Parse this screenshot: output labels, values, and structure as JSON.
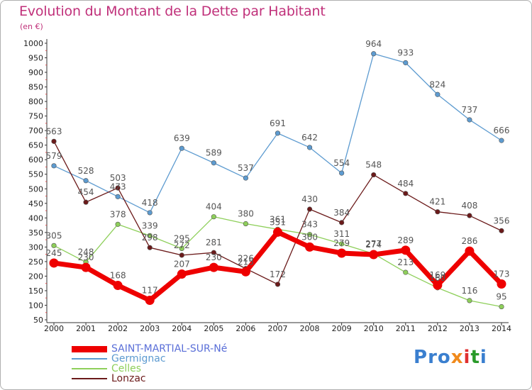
{
  "header": {
    "title": "Evolution du Montant de la Dette par Habitant",
    "subtitle": "(en €)"
  },
  "logo": {
    "text": "Proxiti",
    "colors": [
      "#3a7fcf",
      "#3a7fcf",
      "#3a7fcf",
      "#f08a1c",
      "#e03030",
      "#2a9a2a",
      "#3a7fcf"
    ]
  },
  "chart_data": {
    "type": "line",
    "title": "Evolution du Montant de la Dette par Habitant",
    "subtitle": "(en €)",
    "x": [
      2000,
      2001,
      2002,
      2003,
      2004,
      2005,
      2006,
      2007,
      2008,
      2009,
      2010,
      2011,
      2012,
      2013,
      2014
    ],
    "ylim": [
      50,
      1000
    ],
    "yticks": [
      50,
      100,
      150,
      200,
      250,
      300,
      350,
      400,
      450,
      500,
      550,
      600,
      650,
      700,
      750,
      800,
      850,
      900,
      950,
      1000
    ],
    "grid": false,
    "legend_position": "bottom-left",
    "series": [
      {
        "name": "Germignac",
        "color": "#5d9bd0",
        "values": [
          579,
          528,
          473,
          418,
          639,
          589,
          537,
          691,
          642,
          554,
          964,
          933,
          824,
          737,
          666
        ]
      },
      {
        "name": "Celles",
        "color": "#8ecf5a",
        "values": [
          305,
          248,
          378,
          339,
          295,
          404,
          380,
          361,
          343,
          311,
          277,
          213,
          160,
          116,
          95
        ]
      },
      {
        "name": "Lonzac",
        "color": "#6b1a1a",
        "values": [
          663,
          454,
          503,
          298,
          272,
          281,
          226,
          172,
          430,
          384,
          548,
          484,
          421,
          408,
          356
        ]
      },
      {
        "name": "SAINT-MARTIAL-SUR-Né",
        "color": "#ee0000",
        "values": [
          245,
          230,
          168,
          117,
          207,
          230,
          215,
          351,
          300,
          279,
          274,
          289,
          169,
          286,
          173
        ]
      }
    ]
  }
}
